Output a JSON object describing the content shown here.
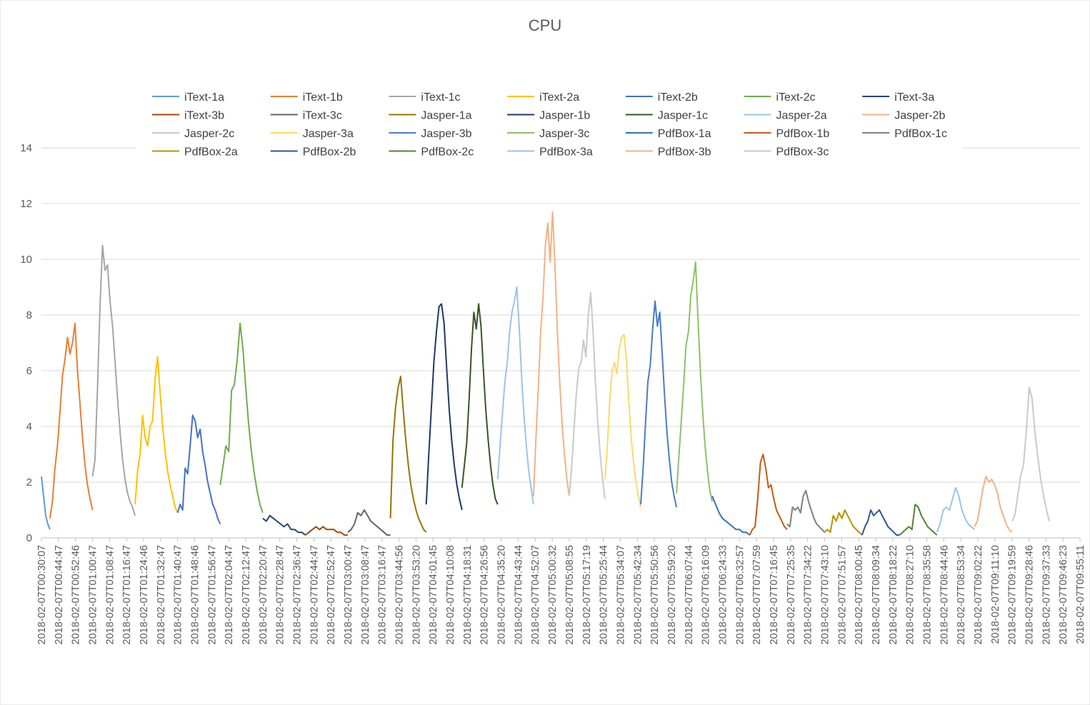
{
  "chart_data": {
    "type": "line",
    "title": "CPU",
    "xlabel": "",
    "ylabel": "",
    "ylim": [
      0,
      14
    ],
    "yticks": [
      0,
      2,
      4,
      6,
      8,
      10,
      12,
      14
    ],
    "grid": true,
    "legend": "top",
    "x_ticks": [
      "2018-02-07T00:30:07",
      "2018-02-07T00:44:47",
      "2018-02-07T00:52:46",
      "2018-02-07T01:00:47",
      "2018-02-07T01:08:47",
      "2018-02-07T01:16:47",
      "2018-02-07T01:24:46",
      "2018-02-07T01:32:47",
      "2018-02-07T01:40:47",
      "2018-02-07T01:48:46",
      "2018-02-07T01:56:47",
      "2018-02-07T02:04:47",
      "2018-02-07T02:12:47",
      "2018-02-07T02:20:47",
      "2018-02-07T02:28:47",
      "2018-02-07T02:36:47",
      "2018-02-07T02:44:47",
      "2018-02-07T02:52:47",
      "2018-02-07T03:00:47",
      "2018-02-07T03:08:47",
      "2018-02-07T03:16:47",
      "2018-02-07T03:44:56",
      "2018-02-07T03:53:20",
      "2018-02-07T04:01:45",
      "2018-02-07T04:10:08",
      "2018-02-07T04:18:31",
      "2018-02-07T04:26:56",
      "2018-02-07T04:35:20",
      "2018-02-07T04:43:44",
      "2018-02-07T04:52:07",
      "2018-02-07T05:00:32",
      "2018-02-07T05:08:55",
      "2018-02-07T05:17:19",
      "2018-02-07T05:25:44",
      "2018-02-07T05:34:07",
      "2018-02-07T05:42:34",
      "2018-02-07T05:50:56",
      "2018-02-07T05:59:20",
      "2018-02-07T06:07:44",
      "2018-02-07T06:16:09",
      "2018-02-07T06:24:33",
      "2018-02-07T06:32:57",
      "2018-02-07T07:07:59",
      "2018-02-07T07:16:45",
      "2018-02-07T07:25:35",
      "2018-02-07T07:34:22",
      "2018-02-07T07:43:10",
      "2018-02-07T07:51:57",
      "2018-02-07T08:00:45",
      "2018-02-07T08:09:34",
      "2018-02-07T08:18:22",
      "2018-02-07T08:27:10",
      "2018-02-07T08:35:58",
      "2018-02-07T08:44:46",
      "2018-02-07T08:53:34",
      "2018-02-07T09:02:22",
      "2018-02-07T09:11:10",
      "2018-02-07T09:19:59",
      "2018-02-07T09:28:46",
      "2018-02-07T09:37:33",
      "2018-02-07T09:46:23",
      "2018-02-07T09:55:11"
    ],
    "series": [
      {
        "name": "iText-1a",
        "color": "#5b9bd5",
        "start": 0.0,
        "end": 0.5,
        "points": [
          2.2,
          1.5,
          0.8,
          0.5,
          0.3
        ]
      },
      {
        "name": "iText-1b",
        "color": "#ed7d31",
        "start": 0.5,
        "end": 3.0,
        "points": [
          0.7,
          1.3,
          2.5,
          3.3,
          4.5,
          5.8,
          6.4,
          7.2,
          6.6,
          7.0,
          7.7,
          6.0,
          4.8,
          3.6,
          2.6,
          1.9,
          1.4,
          1.0
        ]
      },
      {
        "name": "iText-1c",
        "color": "#a5a5a5",
        "start": 3.0,
        "end": 5.5,
        "points": [
          2.2,
          2.8,
          5.4,
          8.3,
          10.5,
          9.6,
          9.8,
          8.5,
          7.6,
          6.3,
          5.0,
          3.8,
          2.8,
          2.1,
          1.6,
          1.3,
          1.1,
          0.8
        ]
      },
      {
        "name": "iText-2a",
        "color": "#ffc000",
        "start": 5.5,
        "end": 8.0,
        "points": [
          1.2,
          2.4,
          3.0,
          4.4,
          3.6,
          3.3,
          4.0,
          4.2,
          5.7,
          6.5,
          5.2,
          4.0,
          3.1,
          2.4,
          1.9,
          1.5,
          1.1,
          0.9
        ]
      },
      {
        "name": "iText-2b",
        "color": "#4472c4",
        "start": 8.0,
        "end": 10.5,
        "points": [
          0.9,
          1.2,
          1.0,
          2.5,
          2.3,
          3.3,
          4.4,
          4.2,
          3.6,
          3.9,
          3.1,
          2.6,
          2.0,
          1.6,
          1.2,
          1.0,
          0.7,
          0.5
        ]
      },
      {
        "name": "iText-2c",
        "color": "#70ad47",
        "start": 10.5,
        "end": 13.0,
        "points": [
          1.9,
          2.6,
          3.3,
          3.1,
          5.3,
          5.5,
          6.4,
          7.7,
          6.8,
          5.4,
          4.1,
          3.1,
          2.3,
          1.7,
          1.2,
          0.9
        ]
      },
      {
        "name": "iText-3a",
        "color": "#264478",
        "start": 13.0,
        "end": 15.5,
        "points": [
          0.7,
          0.6,
          0.8,
          0.7,
          0.6,
          0.5,
          0.4,
          0.5,
          0.3,
          0.3,
          0.2,
          0.2,
          0.1
        ]
      },
      {
        "name": "iText-3b",
        "color": "#9e480e",
        "start": 15.5,
        "end": 18.0,
        "points": [
          0.1,
          0.2,
          0.3,
          0.4,
          0.3,
          0.4,
          0.3,
          0.3,
          0.3,
          0.2,
          0.2,
          0.1,
          0.1
        ]
      },
      {
        "name": "iText-3c",
        "color": "#636363",
        "start": 18.0,
        "end": 20.5,
        "points": [
          0.2,
          0.3,
          0.5,
          0.9,
          0.8,
          1.0,
          0.8,
          0.6,
          0.5,
          0.4,
          0.3,
          0.2,
          0.1,
          0.1
        ]
      },
      {
        "name": "Jasper-1a",
        "color": "#997300",
        "start": 20.5,
        "end": 22.6,
        "points": [
          0.7,
          3.5,
          4.7,
          5.4,
          5.8,
          4.6,
          3.5,
          2.6,
          1.9,
          1.4,
          1.0,
          0.7,
          0.5,
          0.3,
          0.2
        ]
      },
      {
        "name": "Jasper-1b",
        "color": "#203864",
        "start": 22.6,
        "end": 24.7,
        "points": [
          1.2,
          3.0,
          4.6,
          6.3,
          7.4,
          8.3,
          8.4,
          7.7,
          6.1,
          4.6,
          3.5,
          2.6,
          1.9,
          1.4,
          1.0
        ]
      },
      {
        "name": "Jasper-1c",
        "color": "#375623",
        "start": 24.7,
        "end": 26.8,
        "points": [
          1.8,
          2.6,
          3.4,
          5.0,
          6.8,
          8.1,
          7.5,
          8.4,
          7.6,
          6.0,
          4.6,
          3.5,
          2.6,
          1.9,
          1.4,
          1.2
        ]
      },
      {
        "name": "Jasper-2a",
        "color": "#9dc3e6",
        "start": 26.8,
        "end": 28.9,
        "points": [
          2.1,
          3.3,
          4.5,
          5.6,
          6.3,
          7.4,
          8.1,
          8.5,
          9.0,
          7.6,
          5.8,
          4.4,
          3.3,
          2.4,
          1.8,
          1.2
        ]
      },
      {
        "name": "Jasper-2b",
        "color": "#f4b183",
        "start": 28.9,
        "end": 31.0,
        "points": [
          1.5,
          3.5,
          5.3,
          7.4,
          8.6,
          10.5,
          11.3,
          9.9,
          11.7,
          9.8,
          7.5,
          5.6,
          4.1,
          3.0,
          2.1,
          1.5
        ]
      },
      {
        "name": "Jasper-2c",
        "color": "#c9c9c9",
        "start": 31.0,
        "end": 33.1,
        "points": [
          1.5,
          2.5,
          3.9,
          5.2,
          6.1,
          6.3,
          7.1,
          6.5,
          8.0,
          8.8,
          7.4,
          5.6,
          4.1,
          3.0,
          2.1,
          1.4
        ]
      },
      {
        "name": "Jasper-3a",
        "color": "#ffd966",
        "start": 33.1,
        "end": 35.2,
        "points": [
          2.1,
          3.3,
          4.9,
          6.0,
          6.3,
          5.9,
          6.8,
          7.2,
          7.3,
          6.4,
          4.9,
          3.6,
          2.7,
          2.0,
          1.5,
          1.1
        ]
      },
      {
        "name": "Jasper-3b",
        "color": "#4a7bc8",
        "start": 35.2,
        "end": 37.3,
        "points": [
          1.2,
          2.5,
          4.1,
          5.6,
          6.2,
          7.5,
          8.5,
          7.6,
          8.1,
          6.6,
          5.1,
          3.8,
          2.8,
          2.0,
          1.5,
          1.1
        ]
      },
      {
        "name": "Jasper-3c",
        "color": "#8cc168",
        "start": 37.3,
        "end": 39.4,
        "points": [
          1.6,
          2.9,
          4.2,
          5.5,
          6.9,
          7.4,
          8.7,
          9.2,
          9.9,
          7.9,
          6.0,
          4.5,
          3.3,
          2.4,
          1.7,
          1.3
        ]
      },
      {
        "name": "PdfBox-1a",
        "color": "#2e75b6",
        "start": 39.4,
        "end": 41.6,
        "points": [
          1.5,
          1.2,
          0.9,
          0.7,
          0.6,
          0.5,
          0.4,
          0.3,
          0.3,
          0.2,
          0.2,
          0.1
        ]
      },
      {
        "name": "PdfBox-1b",
        "color": "#c55a11",
        "start": 41.6,
        "end": 43.8,
        "points": [
          0.1,
          0.3,
          0.4,
          1.4,
          2.7,
          3.0,
          2.5,
          1.8,
          1.9,
          1.4,
          1.0,
          0.8,
          0.6,
          0.4,
          0.3
        ]
      },
      {
        "name": "PdfBox-1c",
        "color": "#7f7f7f",
        "start": 43.8,
        "end": 46.0,
        "points": [
          0.5,
          0.4,
          1.1,
          1.0,
          1.1,
          0.9,
          1.5,
          1.7,
          1.3,
          1.0,
          0.7,
          0.5,
          0.4,
          0.3,
          0.2
        ]
      },
      {
        "name": "PdfBox-2a",
        "color": "#bf9000",
        "start": 46.0,
        "end": 48.2,
        "points": [
          0.2,
          0.3,
          0.2,
          0.8,
          0.6,
          0.9,
          0.7,
          1.0,
          0.8,
          0.6,
          0.4,
          0.3,
          0.2,
          0.1
        ]
      },
      {
        "name": "PdfBox-2b",
        "color": "#2f5597",
        "start": 48.2,
        "end": 50.4,
        "points": [
          0.1,
          0.4,
          0.6,
          1.0,
          0.8,
          0.9,
          1.0,
          0.8,
          0.6,
          0.4,
          0.3,
          0.2,
          0.1,
          0.1
        ]
      },
      {
        "name": "PdfBox-2c",
        "color": "#548235",
        "start": 50.4,
        "end": 52.6,
        "points": [
          0.1,
          0.2,
          0.3,
          0.4,
          0.3,
          1.2,
          1.1,
          0.8,
          0.6,
          0.4,
          0.3,
          0.2,
          0.1
        ]
      },
      {
        "name": "PdfBox-3a",
        "color": "#9dc3e6",
        "start": 52.6,
        "end": 54.8,
        "points": [
          0.2,
          0.5,
          1.0,
          1.1,
          1.0,
          1.4,
          1.8,
          1.5,
          1.0,
          0.7,
          0.5,
          0.4,
          0.3
        ]
      },
      {
        "name": "PdfBox-3b",
        "color": "#f4b183",
        "start": 54.8,
        "end": 57.0,
        "points": [
          0.4,
          0.6,
          1.2,
          1.8,
          2.2,
          2.0,
          2.1,
          1.9,
          1.6,
          1.1,
          0.8,
          0.5,
          0.3,
          0.2
        ]
      },
      {
        "name": "PdfBox-3c",
        "color": "#c9c9c9",
        "start": 57.0,
        "end": 59.2,
        "points": [
          0.6,
          0.8,
          1.5,
          2.2,
          2.6,
          3.8,
          5.4,
          5.0,
          3.8,
          2.9,
          2.1,
          1.5,
          1.0,
          0.6
        ]
      }
    ]
  }
}
